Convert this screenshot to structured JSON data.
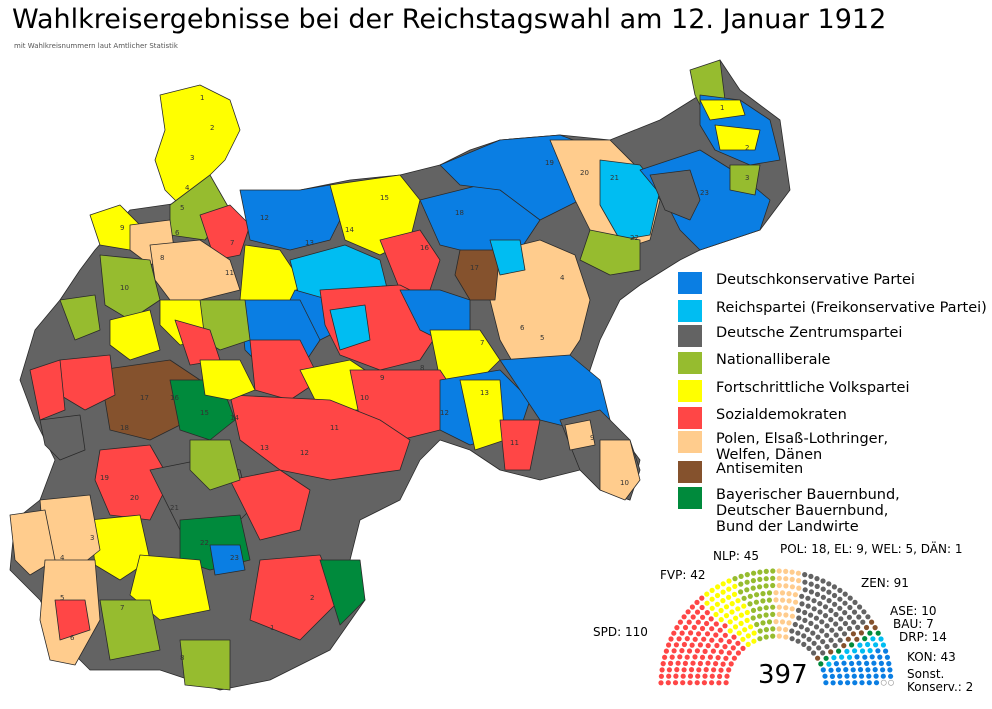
{
  "title": "Wahlkreisergebnisse bei der Reichstagswahl am 12. Januar 1912",
  "subtitle": "mit Wahlkreisnummern laut Amtlicher Statistik",
  "colors": {
    "konservative": "#0a7ee3",
    "reichspartei": "#00bdf2",
    "zentrum": "#636363",
    "nationalliberale": "#96bc2f",
    "fortschritt": "#ffff00",
    "spd": "#ff4646",
    "minderheiten": "#ffcc8d",
    "antisemiten": "#85522d",
    "bauernbund": "#008a3c",
    "sonstige": "#ffffff",
    "border": "#222222"
  },
  "legend": [
    {
      "key": "konservative",
      "label": "Deutschkonservative Partei"
    },
    {
      "key": "reichspartei",
      "label": "Reichspartei (Freikonservative Partei)"
    },
    {
      "key": "zentrum",
      "label": "Deutsche Zentrumspartei"
    },
    {
      "key": "nationalliberale",
      "label": "Nationalliberale"
    },
    {
      "key": "fortschritt",
      "label": "Fortschrittliche Volkspartei"
    },
    {
      "key": "spd",
      "label": "Sozialdemokraten"
    },
    {
      "key": "minderheiten",
      "label": "Polen, Elsaß-Lothringer,\nWelfen, Dänen"
    },
    {
      "key": "antisemiten",
      "label": "Antisemiten"
    },
    {
      "key": "bauernbund",
      "label": "Bayerischer Bauernbund,\nDeutscher Bauernbund,\nBund der Landwirte"
    }
  ],
  "seats": {
    "total": "397",
    "groups": [
      {
        "key": "spd",
        "label": "SPD: 110",
        "count": 110
      },
      {
        "key": "fortschritt",
        "label": "FVP: 42",
        "count": 42
      },
      {
        "key": "nationalliberale",
        "label": "NLP: 45",
        "count": 45
      },
      {
        "key": "minderheiten",
        "label": "POL: 18, EL: 9, WEL: 5, DÄN: 1",
        "count": 33
      },
      {
        "key": "zentrum",
        "label": "ZEN: 91",
        "count": 91
      },
      {
        "key": "antisemiten",
        "label": "ASE: 10",
        "count": 10
      },
      {
        "key": "bauernbund",
        "label": "BAU: 7",
        "count": 7
      },
      {
        "key": "reichspartei",
        "label": "DRP: 14",
        "count": 14
      },
      {
        "key": "konservative",
        "label": "KON: 43",
        "count": 43
      },
      {
        "key": "sonstige",
        "label": "Sonst.\nKonserv.: 2",
        "count": 2
      }
    ]
  },
  "district_numbers": [
    "1",
    "2",
    "3",
    "4",
    "5",
    "6",
    "7",
    "8",
    "9",
    "10",
    "11",
    "12",
    "13",
    "14",
    "15",
    "16",
    "17",
    "18",
    "19",
    "20",
    "21",
    "22",
    "23"
  ]
}
